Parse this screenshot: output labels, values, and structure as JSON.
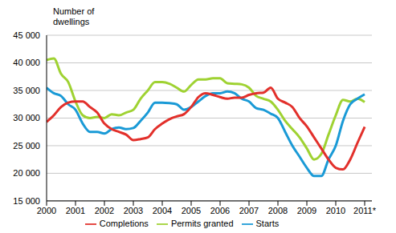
{
  "chart_data": {
    "type": "line",
    "ylabel": "Number of dwellings",
    "x": [
      2000,
      2000.25,
      2000.5,
      2000.75,
      2001,
      2001.25,
      2001.5,
      2001.75,
      2002,
      2002.25,
      2002.5,
      2002.75,
      2003,
      2003.25,
      2003.5,
      2003.75,
      2004,
      2004.25,
      2004.5,
      2004.75,
      2005,
      2005.25,
      2005.5,
      2005.75,
      2006,
      2006.25,
      2006.5,
      2006.75,
      2007,
      2007.25,
      2007.5,
      2007.75,
      2008,
      2008.25,
      2008.5,
      2008.75,
      2009,
      2009.25,
      2009.5,
      2009.75,
      2010,
      2010.25,
      2010.5,
      2010.75,
      2011
    ],
    "series": [
      {
        "name": "Permits granted",
        "color": "#9fd232",
        "values": [
          40500,
          40800,
          38000,
          36500,
          33000,
          30500,
          30000,
          30200,
          30000,
          30700,
          30500,
          31000,
          31500,
          33500,
          35000,
          36500,
          36500,
          36200,
          35500,
          34800,
          36000,
          37000,
          37000,
          37200,
          37200,
          36300,
          36200,
          36100,
          35500,
          34000,
          33500,
          33000,
          31500,
          29500,
          28000,
          26500,
          24500,
          22500,
          23500,
          27000,
          30500,
          33300,
          33000,
          33500,
          32900
        ]
      },
      {
        "name": "Starts",
        "color": "#1a9ad6",
        "values": [
          35500,
          34500,
          34000,
          32500,
          31500,
          29000,
          27500,
          27500,
          27200,
          28000,
          28300,
          28000,
          28200,
          29500,
          31000,
          32800,
          32800,
          32700,
          32500,
          31500,
          32000,
          33000,
          34000,
          34500,
          34500,
          34800,
          34500,
          33500,
          33000,
          31800,
          31500,
          30800,
          30000,
          27500,
          25000,
          23000,
          21000,
          19500,
          19500,
          22500,
          25000,
          29500,
          32500,
          33500,
          34300
        ]
      },
      {
        "name": "Completions",
        "color": "#e2302b",
        "values": [
          29300,
          30500,
          32000,
          32800,
          33000,
          33000,
          32000,
          31000,
          29000,
          28000,
          27500,
          27000,
          26000,
          26200,
          26500,
          28000,
          29000,
          29800,
          30300,
          30700,
          32000,
          33800,
          34500,
          34200,
          33800,
          33500,
          33700,
          33700,
          34200,
          34500,
          34600,
          35500,
          33500,
          32800,
          32000,
          30000,
          28500,
          26500,
          24500,
          22500,
          21000,
          20700,
          22500,
          25500,
          28400
        ]
      }
    ],
    "xlim": [
      2000,
      2011.25
    ],
    "xticks": [
      2000,
      2001,
      2002,
      2003,
      2004,
      2005,
      2006,
      2007,
      2008,
      2009,
      2010,
      {
        "value": 2011,
        "label": "2011*"
      }
    ],
    "ylim": [
      15000,
      45000
    ],
    "yticks": [
      {
        "value": 15000,
        "label": "15 000"
      },
      {
        "value": 20000,
        "label": "20 000"
      },
      {
        "value": 25000,
        "label": "25 000"
      },
      {
        "value": 30000,
        "label": "30 000"
      },
      {
        "value": 35000,
        "label": "35 000"
      },
      {
        "value": 40000,
        "label": "40 000"
      },
      {
        "value": 45000,
        "label": "45 000"
      }
    ],
    "grid": true,
    "legend": "bottom"
  }
}
